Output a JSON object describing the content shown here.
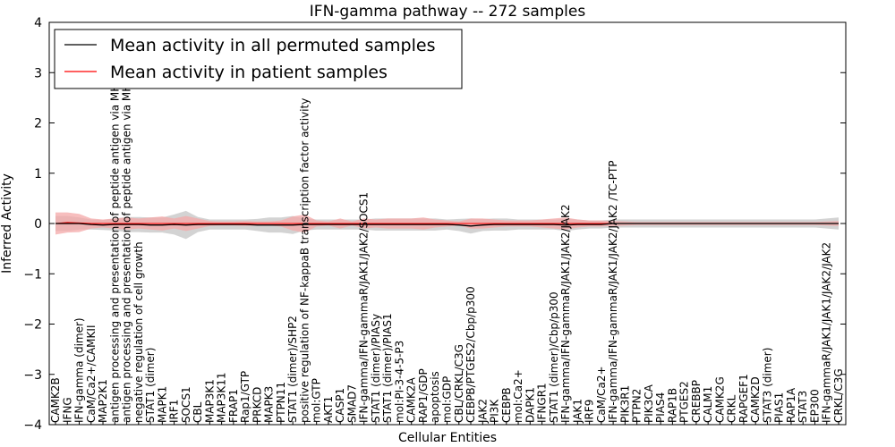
{
  "chart_data": {
    "type": "line",
    "title": "IFN-gamma pathway -- 272 samples",
    "xlabel": "Cellular Entities",
    "ylabel": "Inferred Activity",
    "ylim": [
      -4,
      4
    ],
    "yticks": [
      -4,
      -3,
      -2,
      -1,
      0,
      1,
      2,
      3,
      4
    ],
    "grid": false,
    "legend_position": "upper-left",
    "categories": [
      "CAMK2B",
      "IFNG",
      "IFN-gamma (dimer)",
      "CaM/Ca2+/CAMKII",
      "MAP2K1",
      "antigen processing and presentation of peptide antigen via MHC class I",
      "antigen processing and presentation of peptide antigen via MHC class II",
      "negative regulation of cell growth",
      "STAT1 (dimer)",
      "MAPK1",
      "IRF1",
      "SOCS1",
      "CBL",
      "MAP3K1",
      "MAP3K11",
      "FRAP1",
      "Rap1/GTP",
      "PRKCD",
      "MAPK3",
      "PTPN11",
      "STAT1 (dimer)/SHP2",
      "positive regulation of NF-kappaB transcription factor activity",
      "mol:GTP",
      "AKT1",
      "CASP1",
      "SMAD7",
      "IFN-gamma/IFN-gammaR/JAK1/JAK2/SOCS1",
      "STAT1 (dimer)/PIASy",
      "STAT1 (dimer)/PIAS1",
      "mol:PI-3-4-5-P3",
      "CAMK2A",
      "RAP1/GDP",
      "apoptosis",
      "mol:GDP",
      "CBL/CRKL/C3G",
      "CEBPB/PTGES2/Cbp/p300",
      "JAK2",
      "PI3K",
      "CEBPB",
      "mol:Ca2+",
      "DAPK1",
      "IFNGR1",
      "STAT1 (dimer)/Cbp/p300",
      "IFN-gamma/IFN-gammaR/JAK1/JAK2/JAK2",
      "JAK1",
      "IRF9",
      "CaM/Ca2+",
      "IFN-gamma/IFN-gammaR/JAK1/JAK2/JAK2 /TC-PTP",
      "PIK3R1",
      "PTPN2",
      "PIK3CA",
      "PIAS4",
      "RAP1B",
      "PTGES2",
      "CREBBP",
      "CALM1",
      "CAMK2G",
      "CRKL",
      "RAPGEF1",
      "CAMK2D",
      "STAT3 (dimer)",
      "PIAS1",
      "RAP1A",
      "STAT3",
      "EP300",
      "IFN-gammaR/JAK1/JAK1/JAK2/JAK2",
      "CRKL/C3G"
    ],
    "series": [
      {
        "name": "Mean activity in all permuted samples",
        "color": "#000000",
        "band_color": "#c8c8c8",
        "values": [
          0.0,
          0.0,
          0.0,
          -0.02,
          -0.03,
          -0.02,
          -0.02,
          -0.02,
          -0.03,
          -0.03,
          -0.02,
          -0.03,
          -0.02,
          -0.02,
          -0.02,
          -0.02,
          -0.02,
          -0.03,
          -0.03,
          -0.03,
          -0.03,
          -0.02,
          -0.02,
          -0.02,
          -0.02,
          -0.02,
          -0.02,
          -0.02,
          -0.02,
          -0.02,
          -0.02,
          -0.02,
          -0.02,
          -0.02,
          -0.03,
          -0.05,
          -0.03,
          -0.02,
          -0.02,
          -0.02,
          -0.02,
          -0.02,
          -0.02,
          -0.03,
          -0.02,
          -0.02,
          -0.02,
          0.0,
          0.0,
          0.0,
          0.0,
          0.0,
          0.0,
          0.0,
          0.0,
          0.0,
          0.0,
          0.0,
          0.0,
          0.0,
          0.0,
          0.0,
          0.0,
          0.0,
          0.0,
          0.0,
          0.0
        ],
        "band_halfwidth": [
          0.15,
          0.15,
          0.12,
          0.1,
          0.1,
          0.12,
          0.15,
          0.15,
          0.15,
          0.15,
          0.2,
          0.28,
          0.15,
          0.1,
          0.1,
          0.1,
          0.1,
          0.12,
          0.15,
          0.15,
          0.18,
          0.12,
          0.1,
          0.1,
          0.1,
          0.1,
          0.1,
          0.12,
          0.12,
          0.12,
          0.12,
          0.12,
          0.12,
          0.1,
          0.12,
          0.15,
          0.12,
          0.12,
          0.12,
          0.1,
          0.1,
          0.1,
          0.1,
          0.12,
          0.1,
          0.08,
          0.08,
          0.08,
          0.08,
          0.08,
          0.08,
          0.08,
          0.08,
          0.08,
          0.08,
          0.08,
          0.08,
          0.08,
          0.08,
          0.08,
          0.08,
          0.08,
          0.08,
          0.08,
          0.08,
          0.1,
          0.12
        ]
      },
      {
        "name": "Mean activity in patient samples",
        "color": "#ff0000",
        "band_color": "#f4a8a8",
        "values": [
          0.0,
          0.02,
          0.01,
          0.0,
          0.0,
          0.0,
          0.0,
          0.0,
          0.0,
          0.0,
          0.0,
          0.0,
          0.0,
          0.0,
          0.0,
          0.0,
          0.0,
          0.0,
          0.0,
          0.0,
          0.0,
          0.0,
          0.0,
          0.0,
          0.0,
          0.0,
          0.0,
          0.0,
          0.0,
          0.0,
          0.0,
          0.0,
          0.0,
          0.0,
          0.0,
          0.0,
          0.0,
          0.0,
          0.0,
          0.0,
          0.0,
          0.0,
          0.0,
          0.0,
          0.0,
          0.0,
          0.0,
          0.0,
          0.0,
          0.0,
          0.0,
          0.0,
          0.0,
          0.0,
          0.0,
          0.0,
          0.0,
          0.0,
          0.0,
          0.0,
          0.0,
          0.0,
          0.0,
          0.0,
          0.0,
          0.0,
          0.0
        ],
        "band_halfwidth": [
          0.22,
          0.2,
          0.18,
          0.1,
          0.08,
          0.1,
          0.12,
          0.1,
          0.12,
          0.14,
          0.1,
          0.15,
          0.1,
          0.05,
          0.04,
          0.04,
          0.05,
          0.04,
          0.04,
          0.06,
          0.14,
          0.18,
          0.06,
          0.04,
          0.1,
          0.04,
          0.1,
          0.08,
          0.1,
          0.1,
          0.1,
          0.12,
          0.08,
          0.06,
          0.04,
          0.1,
          0.1,
          0.08,
          0.06,
          0.06,
          0.06,
          0.08,
          0.1,
          0.12,
          0.08,
          0.06,
          0.06,
          0.05,
          0.04,
          0.03,
          0.03,
          0.03,
          0.03,
          0.03,
          0.03,
          0.03,
          0.03,
          0.03,
          0.03,
          0.03,
          0.03,
          0.03,
          0.03,
          0.03,
          0.03,
          0.04,
          0.05
        ]
      }
    ]
  }
}
